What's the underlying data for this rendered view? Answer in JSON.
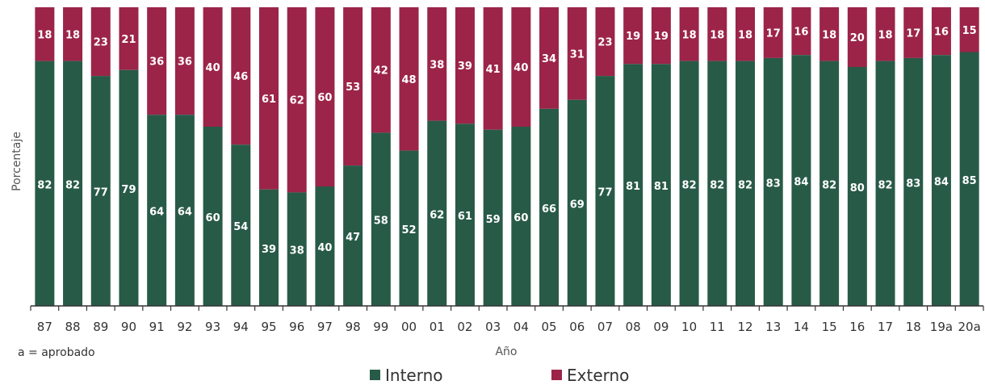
{
  "chart_data": {
    "type": "bar",
    "stacked": true,
    "percent": true,
    "categories": [
      "87",
      "88",
      "89",
      "90",
      "91",
      "92",
      "93",
      "94",
      "95",
      "96",
      "97",
      "98",
      "99",
      "00",
      "01",
      "02",
      "03",
      "04",
      "05",
      "06",
      "07",
      "08",
      "09",
      "10",
      "11",
      "12",
      "13",
      "14",
      "15",
      "16",
      "17",
      "18",
      "19a",
      "20a"
    ],
    "series": [
      {
        "name": "Interno",
        "color": "#285a48",
        "values": [
          82,
          82,
          77,
          79,
          64,
          64,
          60,
          54,
          39,
          38,
          40,
          47,
          58,
          52,
          62,
          61,
          59,
          60,
          66,
          69,
          77,
          81,
          81,
          82,
          82,
          82,
          83,
          84,
          82,
          80,
          82,
          83,
          84,
          85
        ]
      },
      {
        "name": "Externo",
        "color": "#9c2449",
        "values": [
          18,
          18,
          23,
          21,
          36,
          36,
          40,
          46,
          61,
          62,
          60,
          53,
          42,
          48,
          38,
          39,
          41,
          40,
          34,
          31,
          23,
          19,
          19,
          18,
          18,
          18,
          17,
          16,
          18,
          20,
          18,
          17,
          16,
          15
        ]
      }
    ],
    "xlabel": "Año",
    "ylabel": "Porcentaje",
    "note": "a = aprobado",
    "ylim": [
      0,
      100
    ],
    "legend_position": "bottom-center",
    "grid": false
  }
}
